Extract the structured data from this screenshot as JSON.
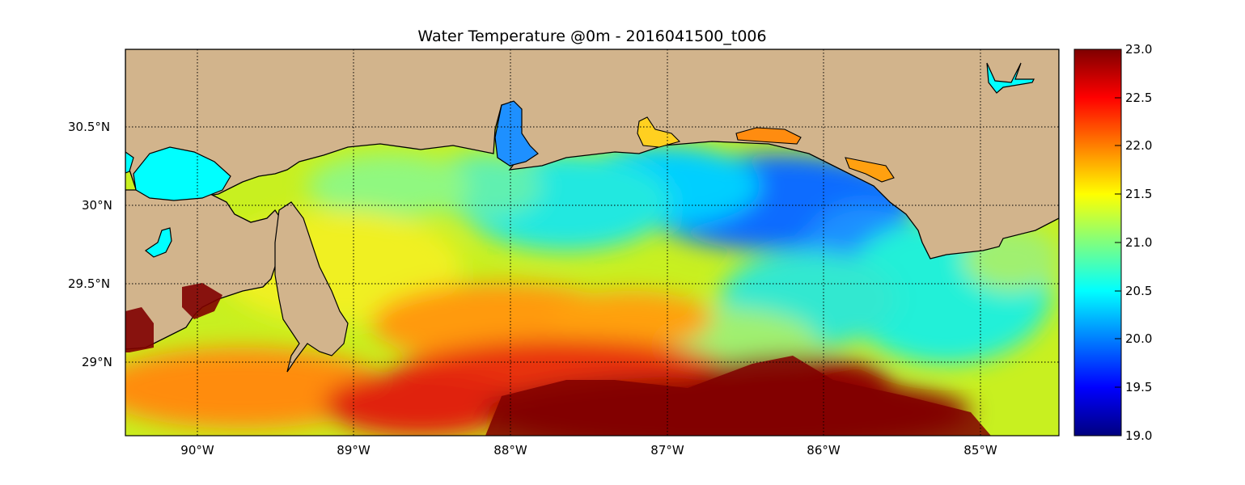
{
  "title": "Water Temperature @0m - 2016041500_t006",
  "x_ticks": [
    "90°W",
    "89°W",
    "88°W",
    "87°W",
    "86°W",
    "85°W"
  ],
  "y_ticks": [
    "30.5°N",
    "30°N",
    "29.5°N",
    "29°N"
  ],
  "colorbar": {
    "min": 19.0,
    "max": 23.0,
    "tick_labels": [
      "23.0",
      "22.5",
      "22.0",
      "21.5",
      "21.0",
      "20.5",
      "20.0",
      "19.5",
      "19.0"
    ],
    "colormap": "jet"
  },
  "colors": {
    "land": "#d2b48c",
    "lake": "#00ffff",
    "grid": "#000000"
  },
  "map": {
    "lon_range": [
      -90.47,
      -84.5
    ],
    "lat_range": [
      28.55,
      31.0
    ]
  }
}
